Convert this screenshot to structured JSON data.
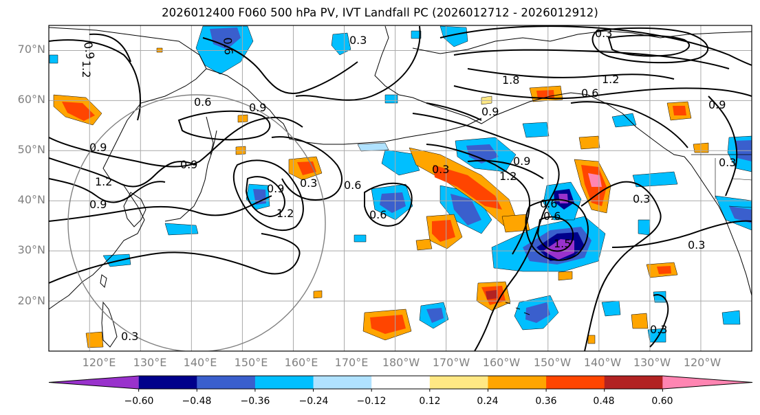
{
  "title": "2026012400 F060 500 hPa PV, IVT Landfall PC (2026012712 - 2026012912)",
  "lat_labels": [
    "70°N",
    "60°N",
    "50°N",
    "40°N",
    "30°N",
    "20°N"
  ],
  "lon_labels": [
    "120°E",
    "130°E",
    "140°E",
    "150°E",
    "160°E",
    "170°E",
    "180°W",
    "170°W",
    "160°W",
    "150°W",
    "140°W",
    "130°W",
    "120°W"
  ],
  "colorbar": {
    "ticks": [
      "−0.60",
      "−0.48",
      "−0.36",
      "−0.24",
      "−0.12",
      "0.12",
      "0.24",
      "0.36",
      "0.48",
      "0.60"
    ],
    "colors": [
      "#9932cc",
      "#00008b",
      "#3a5fcd",
      "#00bfff",
      "#b0e2ff",
      "#ffffff",
      "#ffe884",
      "#ffa500",
      "#ff4500",
      "#b22222",
      "#ff85b2"
    ]
  },
  "contour_labels": [
    "0.3",
    "0.6",
    "0.9",
    "1.2",
    "1.5",
    "1.8"
  ],
  "map": {
    "projection": "equirectangular",
    "extent": {
      "lon_min": 112,
      "lon_max": 250,
      "lat_min": 10,
      "lat_max": 75
    },
    "gridlines": true,
    "range_ring": {
      "center_lon": 140,
      "center_lat": 35,
      "radius_deg": 25
    },
    "fill_field": "IVT landfall principal-component correlation",
    "contour_field": "500 hPa PV"
  }
}
